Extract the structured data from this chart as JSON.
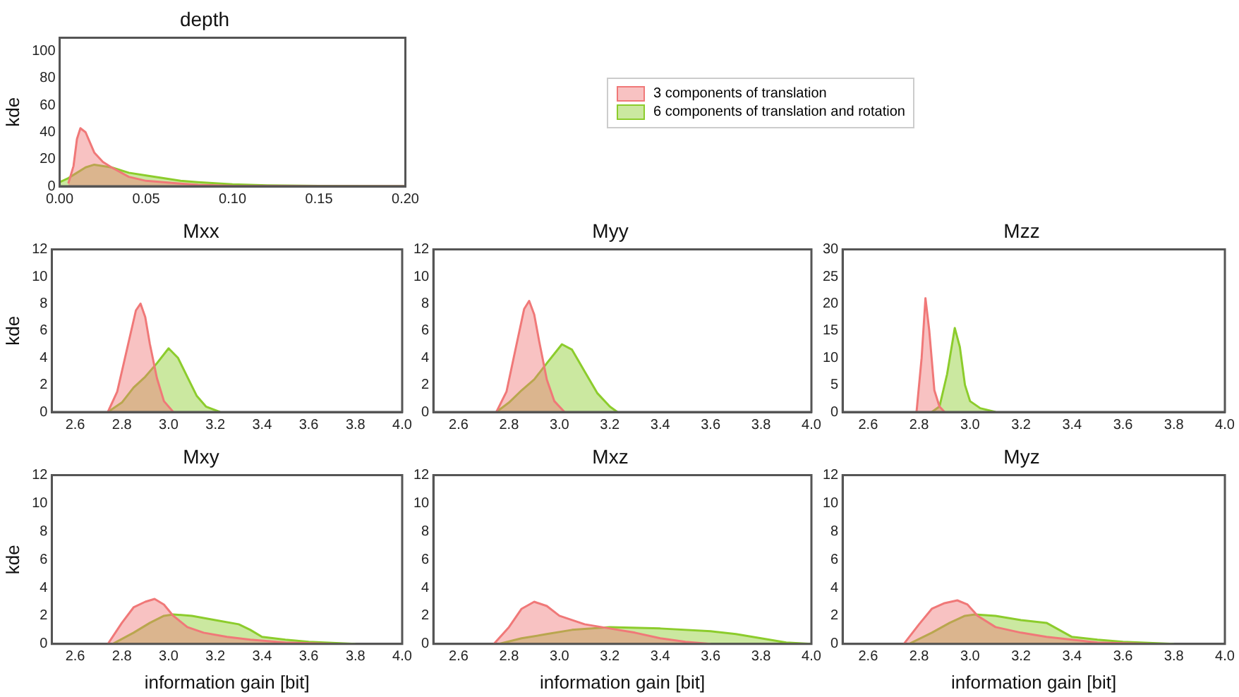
{
  "chart_data": [
    {
      "type": "area",
      "title": "depth",
      "ylabel": "kde",
      "legend": "right",
      "xlim": [
        0,
        0.2
      ],
      "xticks": [
        {
          "value": 0,
          "label": "0.00"
        },
        0.05,
        {
          "value": 0.1,
          "label": "0.10"
        },
        0.15,
        {
          "value": 0.2,
          "label": "0.20"
        }
      ],
      "ylim": [
        0,
        110
      ],
      "yticks": [
        0,
        20,
        40,
        60,
        80,
        100
      ],
      "series": [
        {
          "name": "3 components of translation",
          "color": "#f07878",
          "x": [
            0.005,
            0.008,
            0.01,
            0.012,
            0.015,
            0.02,
            0.025,
            0.03,
            0.04,
            0.05,
            0.06,
            0.07,
            0.08,
            0.1,
            0.15,
            0.2
          ],
          "values": [
            2,
            15,
            35,
            43,
            40,
            25,
            18,
            14,
            7,
            4,
            3,
            2,
            1,
            0.3,
            0,
            0
          ]
        },
        {
          "name": "6 components of translation and rotation",
          "color": "#8ccc2c",
          "x": [
            0,
            0.005,
            0.01,
            0.015,
            0.02,
            0.03,
            0.04,
            0.05,
            0.06,
            0.07,
            0.08,
            0.1,
            0.12,
            0.15,
            0.2
          ],
          "values": [
            3,
            6,
            10,
            14,
            16,
            14,
            10,
            8,
            6,
            4,
            3,
            1.5,
            0.7,
            0.2,
            0
          ]
        }
      ]
    },
    {
      "type": "area",
      "title": "Mxx",
      "ylabel": "kde",
      "xlim": [
        2.5,
        4
      ],
      "xticks": [
        2.6,
        2.8,
        {
          "value": 3,
          "label": "3.0"
        },
        3.2,
        3.4,
        3.6,
        3.8,
        {
          "value": 4,
          "label": "4.0"
        }
      ],
      "ylim": [
        0,
        12
      ],
      "yticks": [
        0,
        2,
        4,
        6,
        8,
        10,
        12
      ],
      "series": [
        {
          "color": "#f07878",
          "x": [
            2.74,
            2.78,
            2.82,
            2.86,
            2.88,
            2.9,
            2.92,
            2.95,
            2.98,
            3.02
          ],
          "values": [
            0,
            1.5,
            4.5,
            7.5,
            8,
            7,
            5,
            2.5,
            0.8,
            0
          ]
        },
        {
          "color": "#8ccc2c",
          "x": [
            2.74,
            2.8,
            2.85,
            2.9,
            2.95,
            3,
            3.04,
            3.08,
            3.12,
            3.16,
            3.22
          ],
          "values": [
            0,
            0.7,
            1.8,
            2.6,
            3.6,
            4.7,
            4,
            2.6,
            1.2,
            0.4,
            0
          ]
        }
      ]
    },
    {
      "type": "area",
      "title": "Myy",
      "xlim": [
        2.5,
        4
      ],
      "xticks": [
        2.6,
        2.8,
        {
          "value": 3,
          "label": "3.0"
        },
        3.2,
        3.4,
        3.6,
        3.8,
        {
          "value": 4,
          "label": "4.0"
        }
      ],
      "ylim": [
        0,
        12
      ],
      "yticks": [
        0,
        2,
        4,
        6,
        8,
        10,
        12
      ],
      "series": [
        {
          "color": "#f07878",
          "x": [
            2.75,
            2.79,
            2.83,
            2.86,
            2.88,
            2.9,
            2.92,
            2.95,
            2.98,
            3.02
          ],
          "values": [
            0,
            1.5,
            5,
            7.6,
            8.2,
            7.2,
            5.2,
            2.4,
            0.8,
            0
          ]
        },
        {
          "color": "#8ccc2c",
          "x": [
            2.75,
            2.8,
            2.85,
            2.9,
            2.95,
            3.01,
            3.05,
            3.1,
            3.15,
            3.2,
            3.23
          ],
          "values": [
            0,
            0.7,
            1.6,
            2.4,
            3.6,
            5,
            4.6,
            3,
            1.4,
            0.4,
            0
          ]
        }
      ]
    },
    {
      "type": "area",
      "title": "Mzz",
      "xlim": [
        2.5,
        4
      ],
      "xticks": [
        2.6,
        2.8,
        {
          "value": 3,
          "label": "3.0"
        },
        3.2,
        3.4,
        3.6,
        3.8,
        {
          "value": 4,
          "label": "4.0"
        }
      ],
      "ylim": [
        0,
        30
      ],
      "yticks": [
        0,
        5,
        10,
        15,
        20,
        25,
        30
      ],
      "series": [
        {
          "color": "#f07878",
          "x": [
            2.79,
            2.81,
            2.825,
            2.84,
            2.86,
            2.88,
            2.9
          ],
          "values": [
            0,
            10,
            21,
            15,
            4,
            1,
            0
          ]
        },
        {
          "color": "#8ccc2c",
          "x": [
            2.85,
            2.88,
            2.91,
            2.94,
            2.96,
            2.98,
            3,
            3.04,
            3.1
          ],
          "values": [
            0,
            1,
            7,
            15.5,
            12,
            5,
            2,
            0.7,
            0
          ]
        }
      ]
    },
    {
      "type": "area",
      "title": "Mxy",
      "ylabel": "kde",
      "xlabel": "information gain [bit]",
      "xlim": [
        2.5,
        4
      ],
      "xticks": [
        2.6,
        2.8,
        {
          "value": 3,
          "label": "3.0"
        },
        3.2,
        3.4,
        3.6,
        3.8,
        {
          "value": 4,
          "label": "4.0"
        }
      ],
      "ylim": [
        0,
        12
      ],
      "yticks": [
        0,
        2,
        4,
        6,
        8,
        10,
        12
      ],
      "series": [
        {
          "color": "#f07878",
          "x": [
            2.74,
            2.8,
            2.85,
            2.9,
            2.94,
            2.98,
            3.02,
            3.08,
            3.15,
            3.25,
            3.35,
            3.5,
            3.7
          ],
          "values": [
            0,
            1.5,
            2.6,
            3,
            3.2,
            2.8,
            2,
            1.2,
            0.8,
            0.5,
            0.3,
            0.1,
            0
          ]
        },
        {
          "color": "#8ccc2c",
          "x": [
            2.76,
            2.85,
            2.92,
            2.98,
            3.02,
            3.1,
            3.2,
            3.3,
            3.35,
            3.4,
            3.5,
            3.6,
            3.8
          ],
          "values": [
            0,
            0.8,
            1.5,
            2,
            2.1,
            2,
            1.7,
            1.4,
            1,
            0.5,
            0.3,
            0.15,
            0
          ]
        }
      ]
    },
    {
      "type": "area",
      "title": "Mxz",
      "xlabel": "information gain [bit]",
      "xlim": [
        2.5,
        4
      ],
      "xticks": [
        2.6,
        2.8,
        {
          "value": 3,
          "label": "3.0"
        },
        3.2,
        3.4,
        3.6,
        3.8,
        {
          "value": 4,
          "label": "4.0"
        }
      ],
      "ylim": [
        0,
        12
      ],
      "yticks": [
        0,
        2,
        4,
        6,
        8,
        10,
        12
      ],
      "series": [
        {
          "color": "#f07878",
          "x": [
            2.74,
            2.8,
            2.85,
            2.9,
            2.95,
            3,
            3.1,
            3.2,
            3.3,
            3.4,
            3.5,
            3.6
          ],
          "values": [
            0,
            1.2,
            2.5,
            3,
            2.7,
            2,
            1.4,
            1.1,
            0.8,
            0.4,
            0.15,
            0
          ]
        },
        {
          "color": "#8ccc2c",
          "x": [
            2.76,
            2.85,
            2.95,
            3.05,
            3.2,
            3.4,
            3.6,
            3.7,
            3.8,
            3.9,
            4
          ],
          "values": [
            0,
            0.4,
            0.7,
            1,
            1.2,
            1.1,
            0.9,
            0.7,
            0.4,
            0.1,
            0
          ]
        }
      ]
    },
    {
      "type": "area",
      "title": "Myz",
      "xlabel": "information gain [bit]",
      "xlim": [
        2.5,
        4
      ],
      "xticks": [
        2.6,
        2.8,
        {
          "value": 3,
          "label": "3.0"
        },
        3.2,
        3.4,
        3.6,
        3.8,
        {
          "value": 4,
          "label": "4.0"
        }
      ],
      "ylim": [
        0,
        12
      ],
      "yticks": [
        0,
        2,
        4,
        6,
        8,
        10,
        12
      ],
      "series": [
        {
          "color": "#f07878",
          "x": [
            2.74,
            2.8,
            2.85,
            2.9,
            2.95,
            2.99,
            3.03,
            3.1,
            3.2,
            3.3,
            3.4,
            3.5,
            3.7
          ],
          "values": [
            0,
            1.4,
            2.5,
            2.9,
            3.1,
            2.8,
            2,
            1.2,
            0.8,
            0.5,
            0.3,
            0.1,
            0
          ]
        },
        {
          "color": "#8ccc2c",
          "x": [
            2.76,
            2.85,
            2.92,
            2.98,
            3.02,
            3.1,
            3.2,
            3.3,
            3.35,
            3.4,
            3.5,
            3.6,
            3.8
          ],
          "values": [
            0,
            0.8,
            1.5,
            2,
            2.1,
            2,
            1.7,
            1.5,
            1,
            0.5,
            0.3,
            0.15,
            0
          ]
        }
      ]
    }
  ]
}
